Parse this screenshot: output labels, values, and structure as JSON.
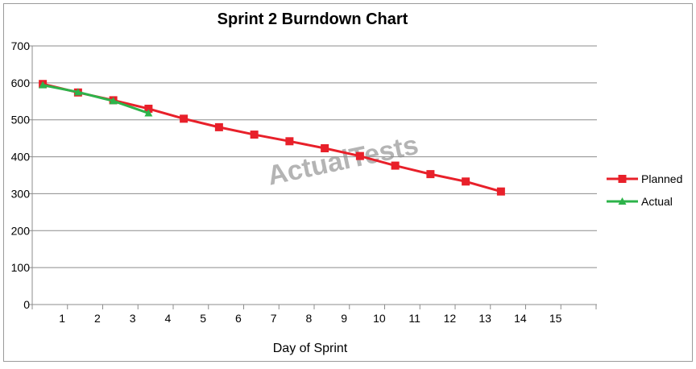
{
  "chart_data": {
    "type": "line",
    "title": "Sprint 2 Burndown Chart",
    "xlabel": "Day of Sprint",
    "ylabel": "",
    "ylim": [
      0,
      700
    ],
    "yticks": [
      0,
      100,
      200,
      300,
      400,
      500,
      600,
      700
    ],
    "categories": [
      "1",
      "2",
      "3",
      "4",
      "5",
      "6",
      "7",
      "8",
      "9",
      "10",
      "11",
      "12",
      "13",
      "14",
      "15"
    ],
    "grid": "horizontal",
    "legend_position": "right",
    "watermark": "ActualTests",
    "series": [
      {
        "name": "Planned",
        "color": "#e8202a",
        "marker": "square",
        "x": [
          0.8,
          1.8,
          2.8,
          3.8,
          4.8,
          5.8,
          6.8,
          7.8,
          8.8,
          9.8,
          10.8,
          11.8,
          12.8,
          13.8
        ],
        "values": [
          597,
          574,
          553,
          530,
          503,
          480,
          460,
          442,
          423,
          402,
          376,
          353,
          333,
          306
        ]
      },
      {
        "name": "Actual",
        "color": "#2db34a",
        "marker": "triangle",
        "x": [
          0.8,
          1.8,
          2.8,
          3.8
        ],
        "values": [
          594,
          575,
          551,
          518
        ]
      }
    ]
  }
}
